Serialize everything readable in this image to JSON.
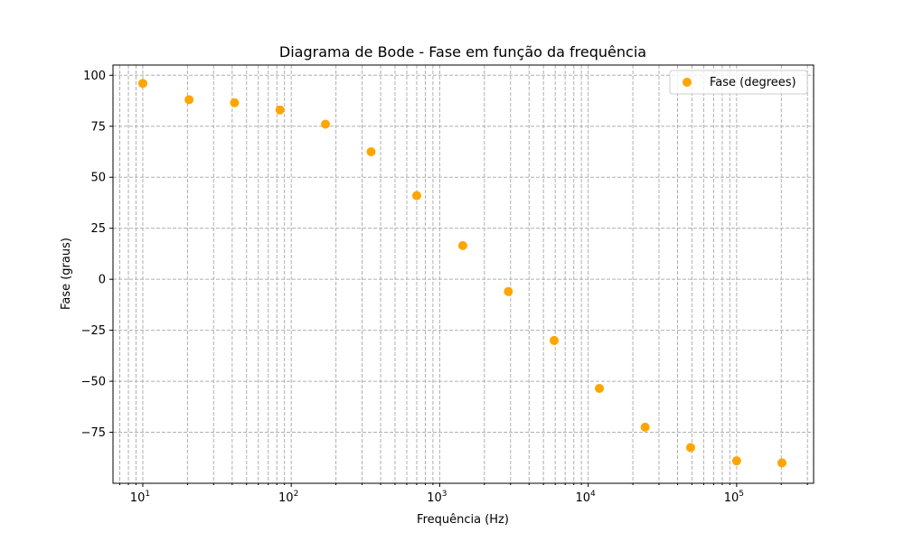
{
  "chart_data": {
    "type": "scatter",
    "title": "Diagrama de Bode - Fase em função da frequência",
    "xlabel": "Frequência (Hz)",
    "ylabel": "Fase (graus)",
    "xscale": "log",
    "xlim": [
      6.3,
      330000
    ],
    "ylim": [
      -100,
      105
    ],
    "grid": true,
    "grid_style": "dashed",
    "legend_position": "top-right",
    "x_ticks": [
      {
        "value": 10,
        "base": "10",
        "exp": "1"
      },
      {
        "value": 100,
        "base": "10",
        "exp": "2"
      },
      {
        "value": 1000,
        "base": "10",
        "exp": "3"
      },
      {
        "value": 10000,
        "base": "10",
        "exp": "4"
      },
      {
        "value": 100000,
        "base": "10",
        "exp": "5"
      }
    ],
    "y_ticks": [
      100,
      75,
      50,
      25,
      0,
      -25,
      -50,
      -75
    ],
    "y_tick_labels": [
      "100",
      "75",
      "50",
      "25",
      "0",
      "−25",
      "−50",
      "−75"
    ],
    "series": [
      {
        "name": "Fase (degrees)",
        "color": "#ffa500",
        "x": [
          10,
          20.5,
          41.5,
          84,
          170,
          345,
          700,
          1430,
          2900,
          5900,
          11900,
          24200,
          49000,
          100000,
          202000
        ],
        "y": [
          96,
          88,
          86.5,
          83,
          76,
          62.5,
          41,
          16.5,
          -6,
          -30,
          -53.5,
          -72.5,
          -82.5,
          -89,
          -90
        ]
      }
    ]
  }
}
